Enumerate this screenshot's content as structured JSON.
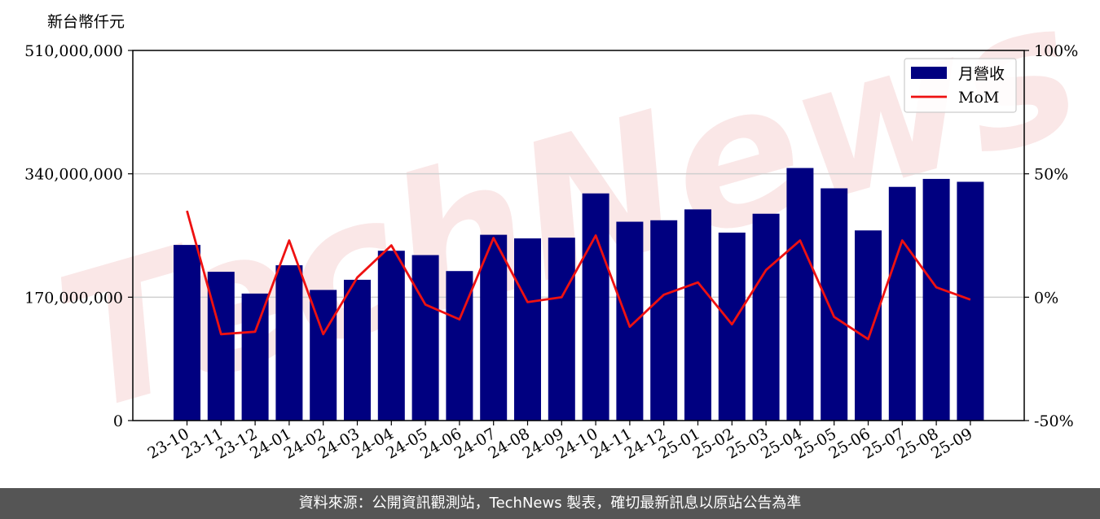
{
  "chart_data": {
    "type": "bar",
    "y_unit_label": "新台幣仟元",
    "categories": [
      "23-10",
      "23-11",
      "23-12",
      "24-01",
      "24-02",
      "24-03",
      "24-04",
      "24-05",
      "24-06",
      "24-07",
      "24-08",
      "24-09",
      "24-10",
      "24-11",
      "24-12",
      "25-01",
      "25-02",
      "25-03",
      "25-04",
      "25-05",
      "25-06",
      "25-07",
      "25-08",
      "25-09"
    ],
    "series": [
      {
        "name": "月營收",
        "axis": "left",
        "type": "bar",
        "color": "#000080",
        "values": [
          242000000,
          205000000,
          175000000,
          214000000,
          180000000,
          194000000,
          234000000,
          228000000,
          206000000,
          256000000,
          251000000,
          252000000,
          313000000,
          274000000,
          276000000,
          291000000,
          259000000,
          285000000,
          348000000,
          320000000,
          262000000,
          322000000,
          333000000,
          329000000
        ]
      },
      {
        "name": "MoM",
        "axis": "right",
        "type": "line",
        "color": "#ee1111",
        "values": [
          35,
          -15,
          -14,
          23,
          -15,
          8,
          21,
          -3,
          -9,
          24,
          -2,
          0,
          25,
          -12,
          1,
          6,
          -11,
          11,
          23,
          -8,
          -17,
          23,
          4,
          -1
        ]
      }
    ],
    "y_left": {
      "ylim": [
        0,
        510000000
      ],
      "ticks": [
        0,
        170000000,
        340000000,
        510000000
      ],
      "tick_labels": [
        "0",
        "170,000,000",
        "340,000,000",
        "510,000,000"
      ]
    },
    "y_right": {
      "ylim": [
        -50,
        100
      ],
      "ticks": [
        -50,
        0,
        50,
        100
      ],
      "tick_labels": [
        "-50%",
        "0%",
        "50%",
        "100%"
      ]
    },
    "grid": "horizontal",
    "legend": "top-right",
    "watermark": "TechNews"
  },
  "footer": {
    "text": "資料來源：公開資訊觀測站，TechNews 製表，確切最新訊息以原站公告為準"
  }
}
